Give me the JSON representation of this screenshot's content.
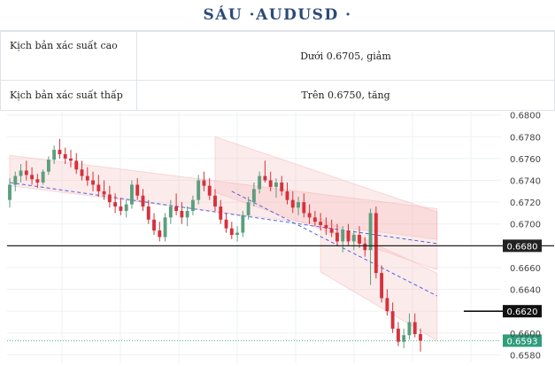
{
  "header": {
    "title": "SÁU ·AUDUSD ·"
  },
  "scenarios": [
    {
      "label": "Kịch bản xác suất cao",
      "value": "Dưới 0.6705, giảm"
    },
    {
      "label": "Kịch bản xác suất thấp",
      "value": "Trên 0.6750, tăng"
    }
  ],
  "chart_data": {
    "type": "candlestick",
    "symbol": "AUDUSD",
    "y_ticks": [
      "0.6800",
      "0.6780",
      "0.6760",
      "0.6740",
      "0.6720",
      "0.6700",
      "0.6680",
      "0.6660",
      "0.6640",
      "0.6620",
      "0.6600",
      "0.6580"
    ],
    "ylim": [
      0.6573,
      0.6803
    ],
    "grid": true,
    "candles": [
      [
        0.6722,
        0.6742,
        0.6715,
        0.6736
      ],
      [
        0.6736,
        0.6748,
        0.673,
        0.6744
      ],
      [
        0.6744,
        0.6755,
        0.6738,
        0.6749
      ],
      [
        0.6749,
        0.6758,
        0.674,
        0.6745
      ],
      [
        0.6745,
        0.6752,
        0.6736,
        0.6741
      ],
      [
        0.6741,
        0.6746,
        0.6733,
        0.6738
      ],
      [
        0.6738,
        0.675,
        0.6736,
        0.6748
      ],
      [
        0.6748,
        0.6762,
        0.6745,
        0.6759
      ],
      [
        0.6759,
        0.6772,
        0.6755,
        0.6768
      ],
      [
        0.6768,
        0.6778,
        0.676,
        0.6764
      ],
      [
        0.6764,
        0.677,
        0.6755,
        0.676
      ],
      [
        0.676,
        0.6768,
        0.6752,
        0.6758
      ],
      [
        0.6758,
        0.6765,
        0.6746,
        0.675
      ],
      [
        0.675,
        0.6758,
        0.674,
        0.6744
      ],
      [
        0.6744,
        0.6752,
        0.6735,
        0.674
      ],
      [
        0.674,
        0.6748,
        0.673,
        0.6736
      ],
      [
        0.6736,
        0.6745,
        0.6725,
        0.673
      ],
      [
        0.673,
        0.674,
        0.6722,
        0.6727
      ],
      [
        0.6727,
        0.6735,
        0.6715,
        0.672
      ],
      [
        0.672,
        0.6728,
        0.671,
        0.6716
      ],
      [
        0.6716,
        0.6724,
        0.6708,
        0.6712
      ],
      [
        0.6712,
        0.6722,
        0.6706,
        0.6718
      ],
      [
        0.6718,
        0.674,
        0.6714,
        0.6736
      ],
      [
        0.6736,
        0.6742,
        0.6722,
        0.6726
      ],
      [
        0.6726,
        0.6732,
        0.6712,
        0.6716
      ],
      [
        0.6716,
        0.6722,
        0.67,
        0.6704
      ],
      [
        0.6704,
        0.671,
        0.669,
        0.6694
      ],
      [
        0.6694,
        0.6702,
        0.6684,
        0.6688
      ],
      [
        0.6688,
        0.671,
        0.6684,
        0.6706
      ],
      [
        0.6706,
        0.6722,
        0.67,
        0.6716
      ],
      [
        0.6716,
        0.6728,
        0.6708,
        0.6712
      ],
      [
        0.6712,
        0.672,
        0.67,
        0.6706
      ],
      [
        0.6706,
        0.6716,
        0.6698,
        0.6712
      ],
      [
        0.6712,
        0.6726,
        0.6708,
        0.6722
      ],
      [
        0.6722,
        0.6745,
        0.6718,
        0.674
      ],
      [
        0.674,
        0.6748,
        0.673,
        0.6735
      ],
      [
        0.6735,
        0.6742,
        0.6722,
        0.6726
      ],
      [
        0.6726,
        0.6732,
        0.6712,
        0.6716
      ],
      [
        0.6716,
        0.6722,
        0.67,
        0.6704
      ],
      [
        0.6704,
        0.671,
        0.6692,
        0.6696
      ],
      [
        0.6696,
        0.6702,
        0.6686,
        0.669
      ],
      [
        0.669,
        0.6698,
        0.6684,
        0.6692
      ],
      [
        0.6692,
        0.6712,
        0.6688,
        0.6708
      ],
      [
        0.6708,
        0.6725,
        0.6704,
        0.672
      ],
      [
        0.672,
        0.6738,
        0.6716,
        0.6732
      ],
      [
        0.6732,
        0.6748,
        0.6728,
        0.6744
      ],
      [
        0.6744,
        0.6758,
        0.6738,
        0.674
      ],
      [
        0.674,
        0.6748,
        0.673,
        0.6734
      ],
      [
        0.6734,
        0.6742,
        0.6724,
        0.6738
      ],
      [
        0.6738,
        0.6744,
        0.6726,
        0.673
      ],
      [
        0.673,
        0.6738,
        0.6718,
        0.6722
      ],
      [
        0.6722,
        0.673,
        0.671,
        0.6715
      ],
      [
        0.6715,
        0.6725,
        0.6708,
        0.672
      ],
      [
        0.672,
        0.6728,
        0.6706,
        0.671
      ],
      [
        0.671,
        0.6718,
        0.67,
        0.6706
      ],
      [
        0.6706,
        0.6712,
        0.6698,
        0.6702
      ],
      [
        0.6702,
        0.671,
        0.6694,
        0.6699
      ],
      [
        0.6699,
        0.6706,
        0.669,
        0.6696
      ],
      [
        0.6696,
        0.6704,
        0.6688,
        0.6692
      ],
      [
        0.6692,
        0.67,
        0.668,
        0.6684
      ],
      [
        0.6684,
        0.6698,
        0.6674,
        0.6694
      ],
      [
        0.6694,
        0.67,
        0.668,
        0.6684
      ],
      [
        0.6684,
        0.6694,
        0.6676,
        0.669
      ],
      [
        0.669,
        0.6698,
        0.6678,
        0.6682
      ],
      [
        0.6682,
        0.6688,
        0.667,
        0.6676
      ],
      [
        0.6676,
        0.6714,
        0.6644,
        0.671
      ],
      [
        0.671,
        0.6716,
        0.665,
        0.6655
      ],
      [
        0.6655,
        0.6662,
        0.6628,
        0.6632
      ],
      [
        0.6632,
        0.664,
        0.6616,
        0.662
      ],
      [
        0.662,
        0.6628,
        0.66,
        0.6604
      ],
      [
        0.6604,
        0.661,
        0.6588,
        0.6592
      ],
      [
        0.6592,
        0.6604,
        0.6586,
        0.6598
      ],
      [
        0.6598,
        0.6618,
        0.6594,
        0.661
      ],
      [
        0.661,
        0.6618,
        0.6596,
        0.6599
      ],
      [
        0.6599,
        0.6604,
        0.6583,
        0.6593
      ]
    ],
    "horizontal_lines": [
      {
        "value": 0.668,
        "label": "0.6680",
        "color": "#222222"
      },
      {
        "value": 0.662,
        "label": "0.6620",
        "color": "#111111"
      }
    ],
    "last_price": {
      "value": 0.6593,
      "label": "0.6593",
      "color": "#2f9e7a"
    },
    "channels": [
      {
        "upper": [
          [
            0,
            0.6763
          ],
          [
            77,
            0.6714
          ]
        ],
        "lower": [
          [
            0,
            0.6735
          ],
          [
            77,
            0.6686
          ]
        ],
        "color": "#f4b8b8"
      },
      {
        "upper": [
          [
            37,
            0.678
          ],
          [
            77,
            0.6711
          ]
        ],
        "lower": [
          [
            37,
            0.6729
          ],
          [
            77,
            0.6658
          ]
        ],
        "color": "#f4b8b8"
      },
      {
        "upper": [
          [
            56,
            0.6705
          ],
          [
            77,
            0.6655
          ]
        ],
        "lower": [
          [
            56,
            0.6656
          ],
          [
            77,
            0.6593
          ]
        ],
        "color": "#f4b8b8"
      }
    ],
    "trendlines": [
      {
        "points": [
          [
            0,
            0.6738
          ],
          [
            77,
            0.6682
          ]
        ],
        "color": "#4a67e0",
        "style": "dashed"
      },
      {
        "points": [
          [
            40,
            0.673
          ],
          [
            77,
            0.6634
          ]
        ],
        "color": "#4a67e0",
        "style": "dashed"
      }
    ],
    "colors": {
      "up": "#5c9e7e",
      "down": "#d5323c"
    }
  }
}
